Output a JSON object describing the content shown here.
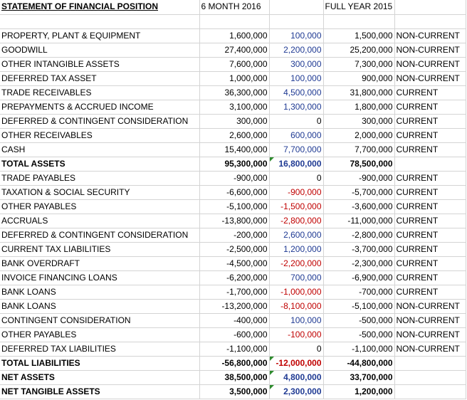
{
  "header": {
    "title": "STATEMENT OF FINANCIAL POSITION",
    "period_current": "6 MONTH 2016",
    "period_prior": "FULL YEAR 2015"
  },
  "colors": {
    "positive_change": "#1f3a93",
    "negative_change": "#c00000",
    "note_marker": "#2e8b2e"
  },
  "rows": [
    {
      "label": "PROPERTY, PLANT & EQUIPMENT",
      "current": "1,600,000",
      "change": "100,000",
      "change_color": "blue",
      "prior": "1,500,000",
      "class": "NON-CURRENT",
      "bold": false,
      "marker": false
    },
    {
      "label": "GOODWILL",
      "current": "27,400,000",
      "change": "2,200,000",
      "change_color": "blue",
      "prior": "25,200,000",
      "class": "NON-CURRENT",
      "bold": false,
      "marker": false
    },
    {
      "label": "OTHER INTANGIBLE ASSETS",
      "current": "7,600,000",
      "change": "300,000",
      "change_color": "blue",
      "prior": "7,300,000",
      "class": "NON-CURRENT",
      "bold": false,
      "marker": false
    },
    {
      "label": "DEFERRED TAX ASSET",
      "current": "1,000,000",
      "change": "100,000",
      "change_color": "blue",
      "prior": "900,000",
      "class": "NON-CURRENT",
      "bold": false,
      "marker": false
    },
    {
      "label": "TRADE RECEIVABLES",
      "current": "36,300,000",
      "change": "4,500,000",
      "change_color": "blue",
      "prior": "31,800,000",
      "class": "CURRENT",
      "bold": false,
      "marker": false
    },
    {
      "label": "PREPAYMENTS & ACCRUED INCOME",
      "current": "3,100,000",
      "change": "1,300,000",
      "change_color": "blue",
      "prior": "1,800,000",
      "class": "CURRENT",
      "bold": false,
      "marker": false
    },
    {
      "label": "DEFERRED & CONTINGENT CONSIDERATION",
      "current": "300,000",
      "change": "0",
      "change_color": "black",
      "prior": "300,000",
      "class": "CURRENT",
      "bold": false,
      "marker": false
    },
    {
      "label": "OTHER RECEIVABLES",
      "current": "2,600,000",
      "change": "600,000",
      "change_color": "blue",
      "prior": "2,000,000",
      "class": "CURRENT",
      "bold": false,
      "marker": false
    },
    {
      "label": "CASH",
      "current": "15,400,000",
      "change": "7,700,000",
      "change_color": "blue",
      "prior": "7,700,000",
      "class": "CURRENT",
      "bold": false,
      "marker": false
    },
    {
      "label": "TOTAL ASSETS",
      "current": "95,300,000",
      "change": "16,800,000",
      "change_color": "blue",
      "prior": "78,500,000",
      "class": "",
      "bold": true,
      "marker": true
    },
    {
      "label": "TRADE PAYABLES",
      "current": "-900,000",
      "change": "0",
      "change_color": "black",
      "prior": "-900,000",
      "class": "CURRENT",
      "bold": false,
      "marker": false
    },
    {
      "label": "TAXATION & SOCIAL SECURITY",
      "current": "-6,600,000",
      "change": "-900,000",
      "change_color": "red",
      "prior": "-5,700,000",
      "class": "CURRENT",
      "bold": false,
      "marker": false
    },
    {
      "label": "OTHER PAYABLES",
      "current": "-5,100,000",
      "change": "-1,500,000",
      "change_color": "red",
      "prior": "-3,600,000",
      "class": "CURRENT",
      "bold": false,
      "marker": false
    },
    {
      "label": "ACCRUALS",
      "current": "-13,800,000",
      "change": "-2,800,000",
      "change_color": "red",
      "prior": "-11,000,000",
      "class": "CURRENT",
      "bold": false,
      "marker": false
    },
    {
      "label": "DEFERRED & CONTINGENT CONSIDERATION",
      "current": "-200,000",
      "change": "2,600,000",
      "change_color": "blue",
      "prior": "-2,800,000",
      "class": "CURRENT",
      "bold": false,
      "marker": false
    },
    {
      "label": "CURRENT TAX LIABILITIES",
      "current": "-2,500,000",
      "change": "1,200,000",
      "change_color": "blue",
      "prior": "-3,700,000",
      "class": "CURRENT",
      "bold": false,
      "marker": false
    },
    {
      "label": "BANK OVERDRAFT",
      "current": "-4,500,000",
      "change": "-2,200,000",
      "change_color": "red",
      "prior": "-2,300,000",
      "class": "CURRENT",
      "bold": false,
      "marker": false
    },
    {
      "label": "INVOICE FINANCING LOANS",
      "current": "-6,200,000",
      "change": "700,000",
      "change_color": "blue",
      "prior": "-6,900,000",
      "class": "CURRENT",
      "bold": false,
      "marker": false
    },
    {
      "label": "BANK LOANS",
      "current": "-1,700,000",
      "change": "-1,000,000",
      "change_color": "red",
      "prior": "-700,000",
      "class": "CURRENT",
      "bold": false,
      "marker": false
    },
    {
      "label": "BANK LOANS",
      "current": "-13,200,000",
      "change": "-8,100,000",
      "change_color": "red",
      "prior": "-5,100,000",
      "class": "NON-CURRENT",
      "bold": false,
      "marker": false
    },
    {
      "label": "CONTINGENT CONSIDERATION",
      "current": "-400,000",
      "change": "100,000",
      "change_color": "blue",
      "prior": "-500,000",
      "class": "NON-CURRENT",
      "bold": false,
      "marker": false
    },
    {
      "label": "OTHER PAYABLES",
      "current": "-600,000",
      "change": "-100,000",
      "change_color": "red",
      "prior": "-500,000",
      "class": "NON-CURRENT",
      "bold": false,
      "marker": false
    },
    {
      "label": "DEFERRED TAX LIABILITIES",
      "current": "-1,100,000",
      "change": "0",
      "change_color": "black",
      "prior": "-1,100,000",
      "class": "NON-CURRENT",
      "bold": false,
      "marker": false
    },
    {
      "label": "TOTAL LIABILITIES",
      "current": "-56,800,000",
      "change": "-12,000,000",
      "change_color": "red",
      "prior": "-44,800,000",
      "class": "",
      "bold": true,
      "marker": true
    },
    {
      "label": "NET ASSETS",
      "current": "38,500,000",
      "change": "4,800,000",
      "change_color": "blue",
      "prior": "33,700,000",
      "class": "",
      "bold": true,
      "marker": true
    },
    {
      "label": "NET TANGIBLE ASSETS",
      "current": "3,500,000",
      "change": "2,300,000",
      "change_color": "blue",
      "prior": "1,200,000",
      "class": "",
      "bold": true,
      "marker": true
    }
  ]
}
